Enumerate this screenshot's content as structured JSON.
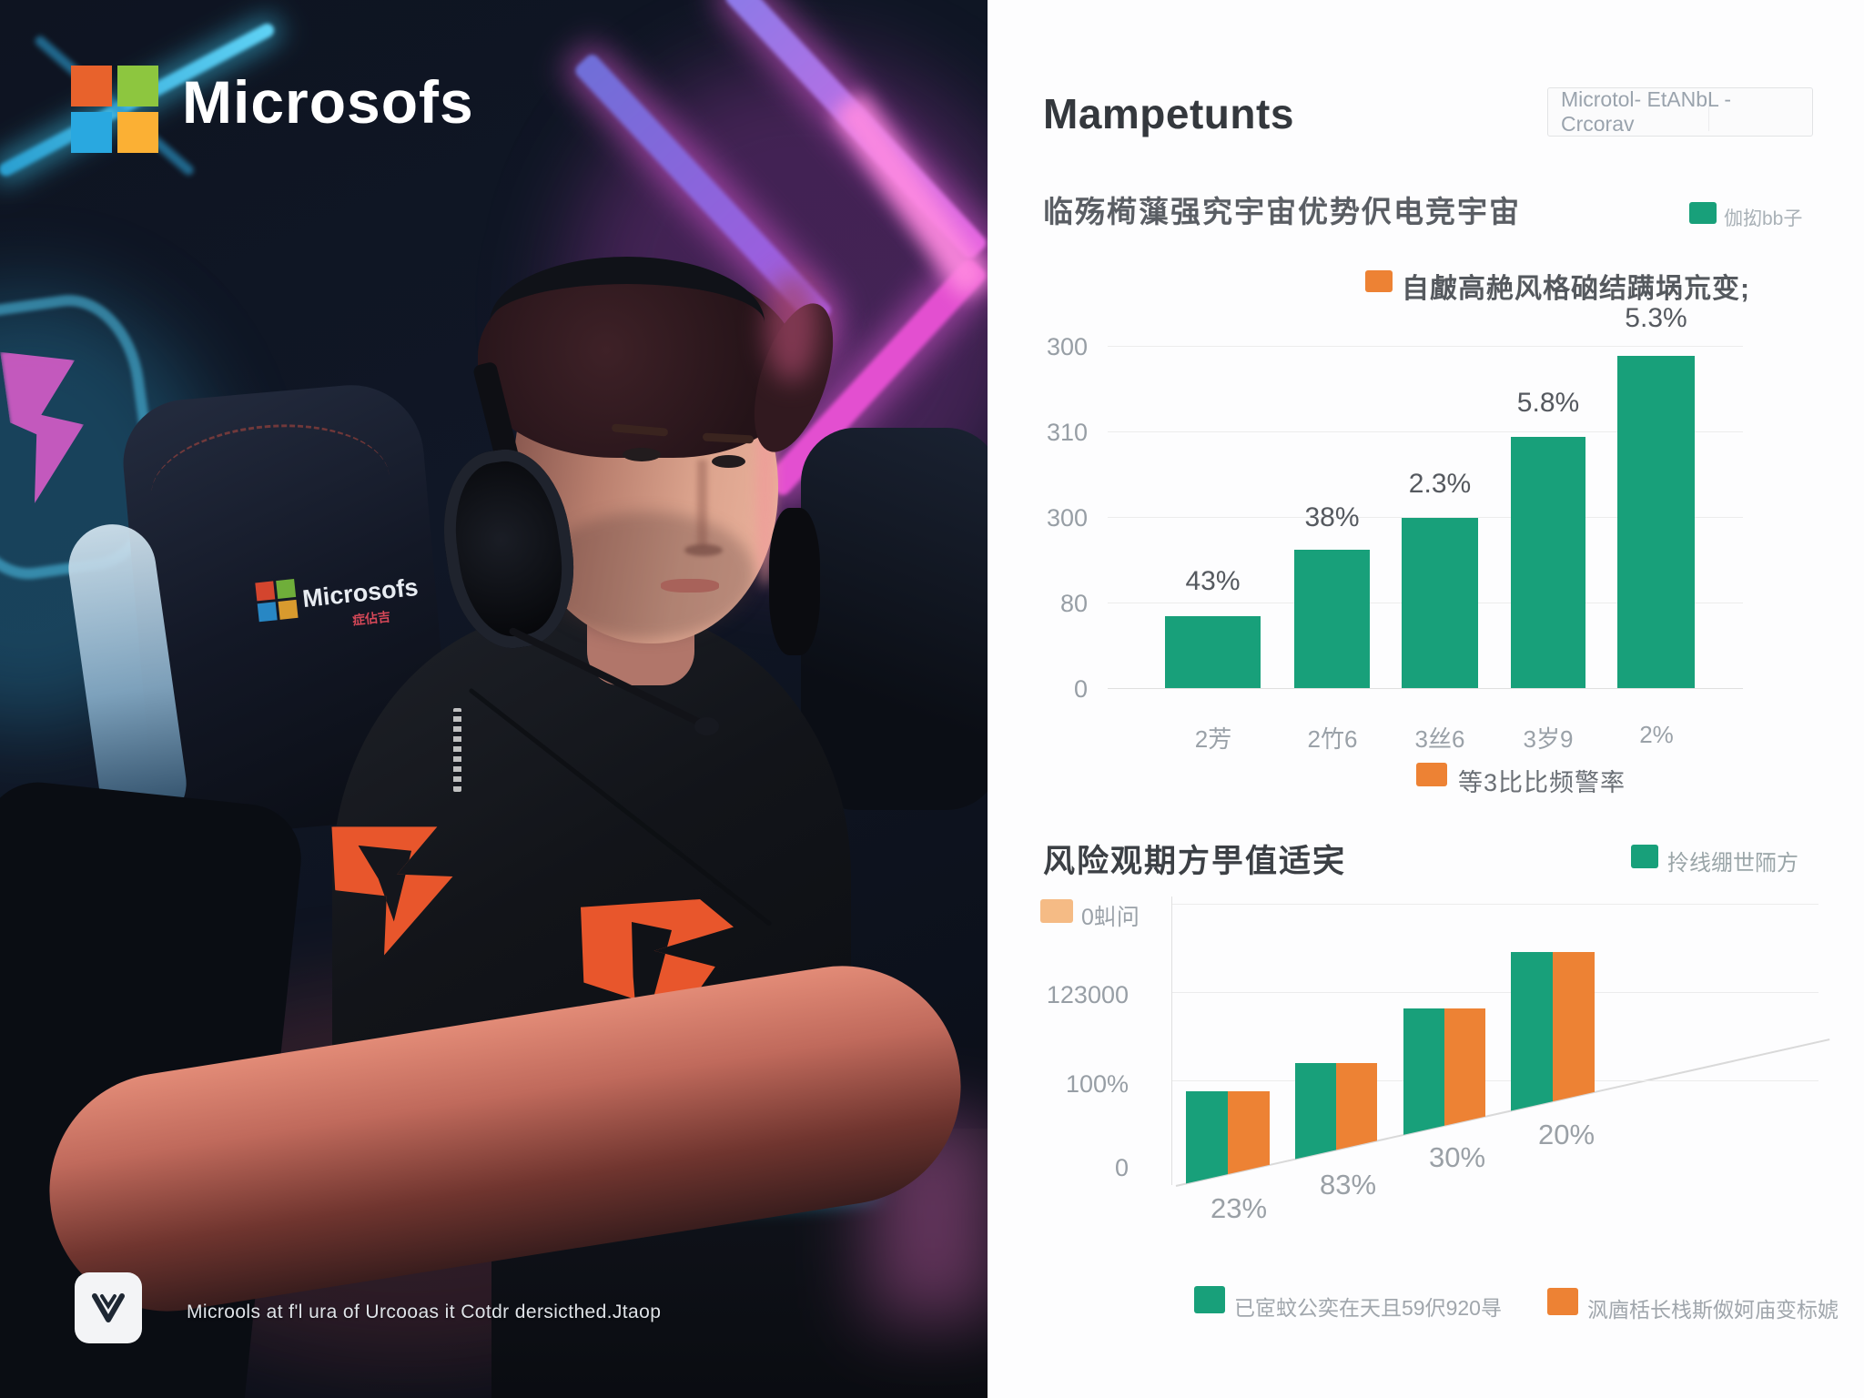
{
  "photo": {
    "brand_logo_text": "Microsofs",
    "chair_logo_text": "Microsofs",
    "chair_logo_subtext": "症佔吉",
    "caption": "Microols at f'l ura of Urcooas it Cotdr dersicthed.Jtaop"
  },
  "panel": {
    "title": "Mampetunts",
    "search_value": "Microtol- EtANbL -Crcorav",
    "section1": {
      "heading": "临殇槆薻强究宇宙优势伬电竞宇宙",
      "legend_top_right": "伽抝bb子",
      "legend_orange": "自皻高赩风格硇结蹒埚巟变;",
      "legend_bottom": "等3比比频警率"
    },
    "section2": {
      "heading": "风险观期方甼值适宎",
      "legend_green_right": "拎线绷世陑方",
      "legend_light_orange": "0虯问",
      "legend_bottom_green": "已宧蚊公奕在天且59伬920㝵",
      "legend_bottom_orange": "沨庮栝长栈斯伮妸庙变标婋"
    },
    "colors": {
      "green": "#18A07A",
      "orange": "#ED8234",
      "light_orange": "#F5BB85"
    }
  },
  "chart_data": [
    {
      "type": "bar",
      "title": "临殇槆薻强究宇宙优势伬电竞宇宙",
      "categories": [
        "2芳",
        "2竹6",
        "3丝6",
        "3岁9",
        "2%"
      ],
      "values": [
        67,
        129,
        159,
        235,
        311
      ],
      "bar_labels": [
        "43%",
        "38%",
        "2.3%",
        "5.8%",
        "5.3%"
      ],
      "ytick_labels": [
        "0",
        "80",
        "300",
        "310",
        "300"
      ],
      "ylim": [
        0,
        400
      ],
      "grid": true,
      "bar_color": "#18A07A",
      "legend": [
        "伽抝bb子",
        "自皻高赩风格硇结蹒埚巟变;",
        "等3比比频警率"
      ],
      "note": "axis tick text is garbled AI-generated glyphs; values estimated from gridline spacing (80 units per gridline)"
    },
    {
      "type": "bar",
      "title": "风险观期方甼值适宎",
      "categories": [
        "23%",
        "83%",
        "30%",
        "20%"
      ],
      "series": [
        {
          "name": "已宧蚊公奕在天且59伬920㝵",
          "color": "#18A07A",
          "values": [
            90,
            124,
            189,
            257
          ]
        },
        {
          "name": "沨庮栝长栈斯伮妸庙变标婋",
          "color": "#ED8234",
          "values": [
            90,
            124,
            189,
            257
          ]
        }
      ],
      "ytick_labels": [
        "0",
        "100%",
        "123000"
      ],
      "ylim": [
        0,
        320
      ],
      "grid": true,
      "legend_top": "拎线绷世陑方",
      "legend_light": "0虯问",
      "note": "paired green/orange bars of equal height; bar bases are cut by a rising diagonal line; % labels sit below the diagonal"
    }
  ]
}
